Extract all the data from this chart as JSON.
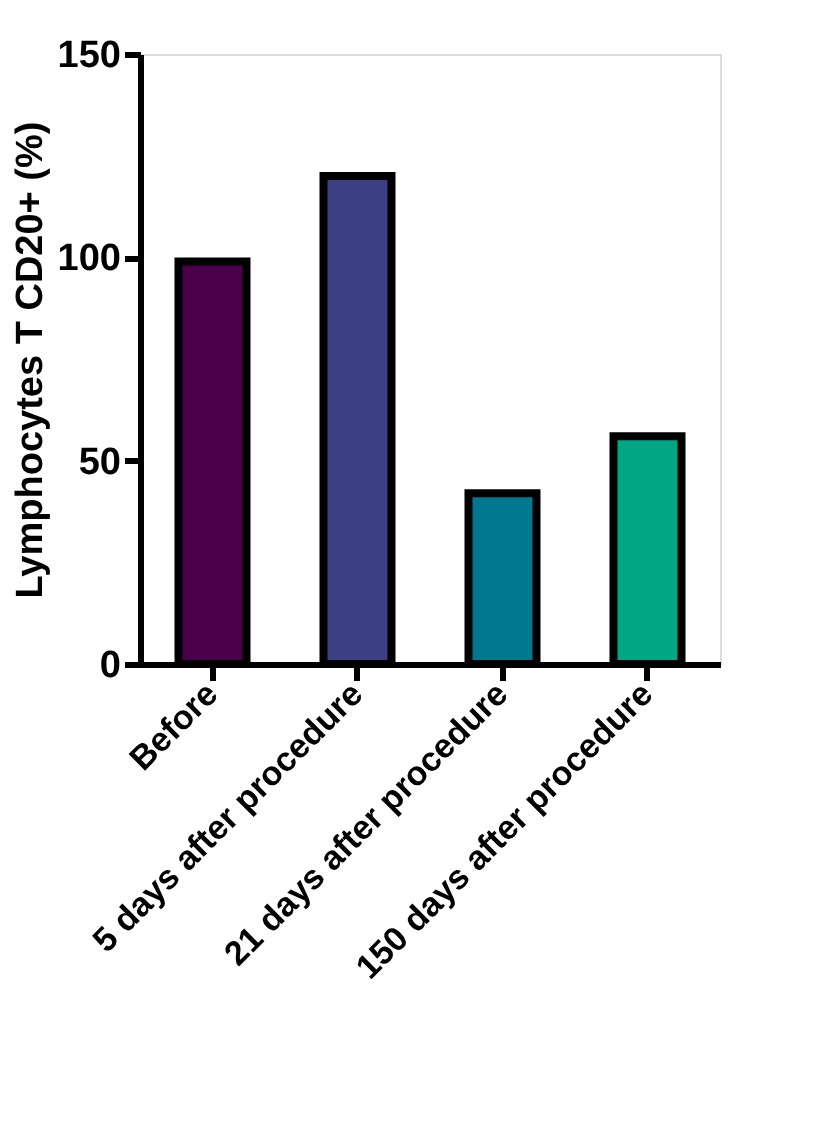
{
  "chart_data": {
    "type": "bar",
    "ylabel": "Lymphocytes T CD20+ (%)",
    "categories": [
      "Before",
      "5 days after procedure",
      "21 days after procedure",
      "150 days after procedure"
    ],
    "values": [
      99,
      120,
      42,
      56
    ],
    "colors": [
      "#4a0048",
      "#3d3f84",
      "#027890",
      "#00a783"
    ],
    "ylim": [
      0,
      150
    ],
    "yticks": [
      0,
      50,
      100,
      150
    ],
    "grid": false
  }
}
